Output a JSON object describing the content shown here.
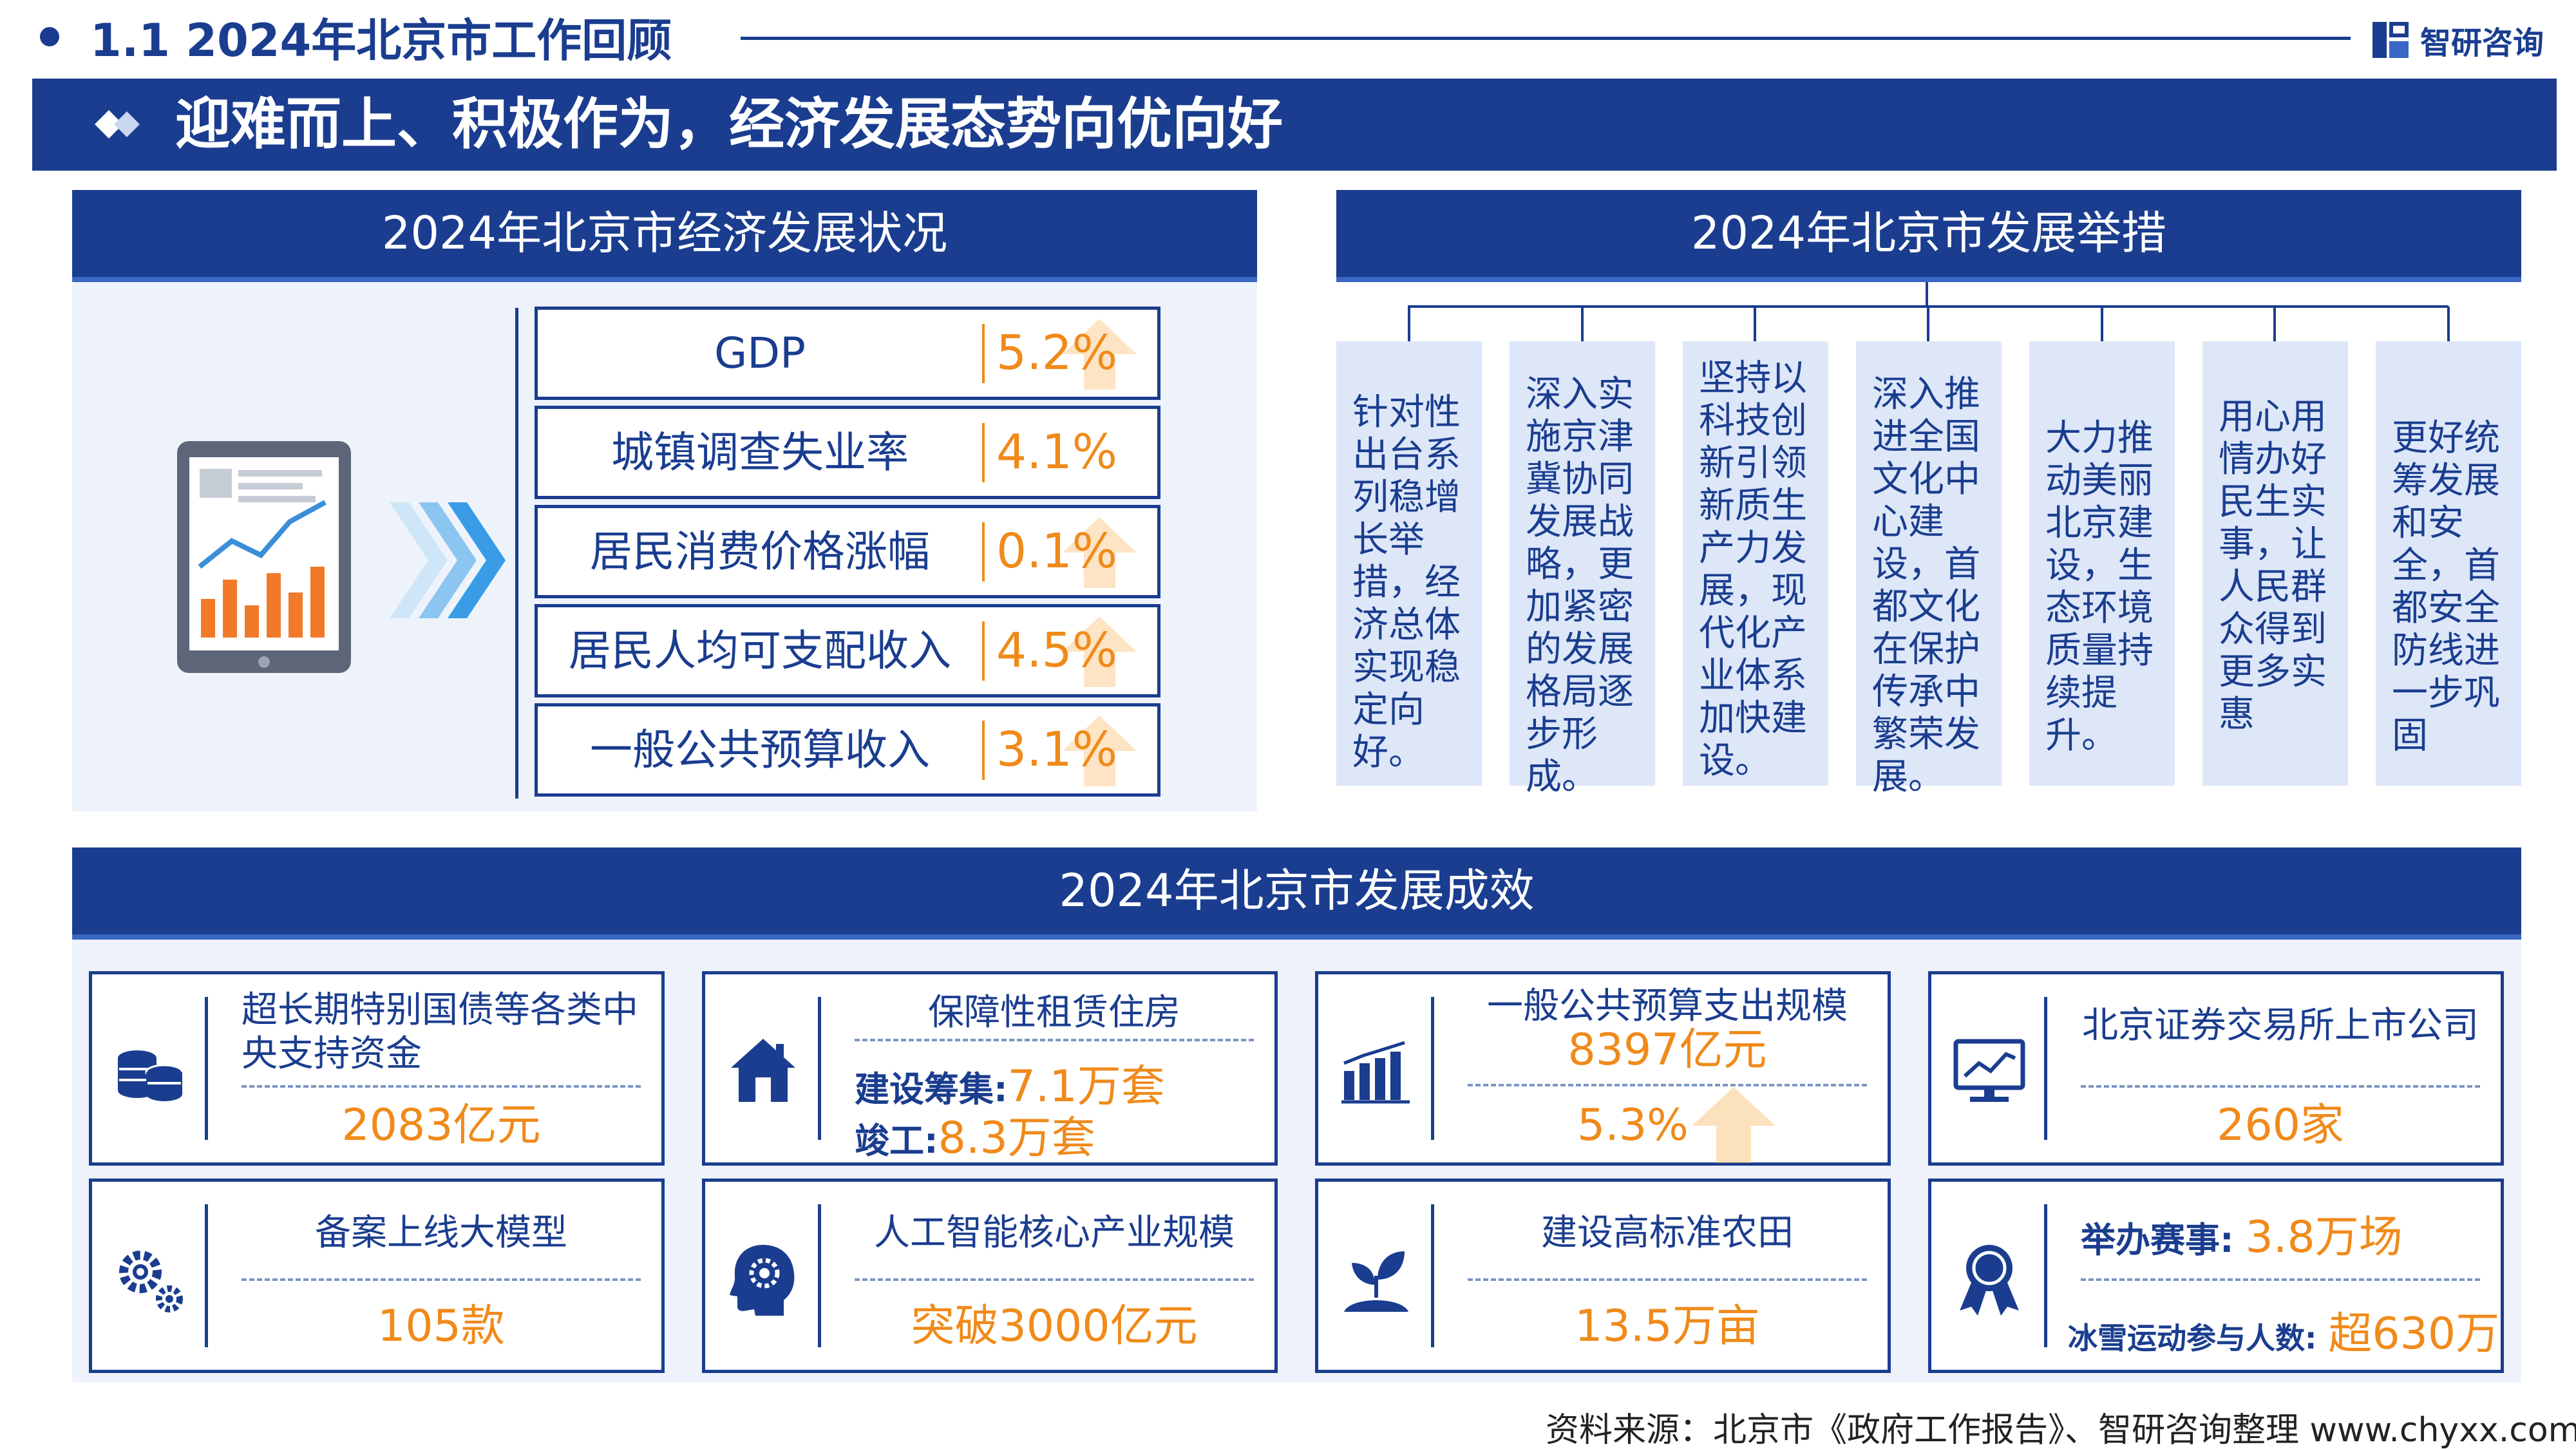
{
  "header": {
    "section_title": "1.1  2024年北京市工作回顾",
    "brand": "智研咨询",
    "banner": "迎难而上、积极作为，经济发展态势向优向好"
  },
  "status_panel": {
    "title": "2024年北京市经济发展状况",
    "rows": [
      {
        "label": "GDP",
        "value": "5.2%"
      },
      {
        "label": "城镇调查失业率",
        "value": "4.1%"
      },
      {
        "label": "居民消费价格涨幅",
        "value": "0.1%"
      },
      {
        "label": "居民人均可支配收入",
        "value": "4.5%"
      },
      {
        "label": "一般公共预算收入",
        "value": "3.1%"
      }
    ]
  },
  "measures_panel": {
    "title": "2024年北京市发展举措",
    "items": [
      "针对性出台系列稳增长举措，经济总体实现稳定向好。",
      "深入实施京津冀协同发展战略，更加紧密的发展格局逐步形成。",
      "坚持以科技创新引领新质生产力发展，现代化产业体系加快建设。",
      "深入推进全国文化中心建设，首都文化在保护传承中繁荣发展。",
      "大力推动美丽北京建设，生态环境质量持续提升。",
      "用心用情办好民生实事，让人民群众得到更多实惠",
      "更好统筹发展和安全，首都安全防线进一步巩固"
    ]
  },
  "results_panel": {
    "title": "2024年北京市发展成效",
    "cards": [
      {
        "icon": "coins-icon",
        "title": "超长期特别国债等各类中央支持资金",
        "value": "2083亿元"
      },
      {
        "icon": "house-icon",
        "title": "保障性租赁住房",
        "line1_label": "建设筹集:",
        "line1_value": "7.1万套",
        "line2_label": "竣工:",
        "line2_value": "8.3万套"
      },
      {
        "icon": "bar-chart-icon",
        "title": "一般公共预算支出规模",
        "value": "8397亿元",
        "value2": "5.3%"
      },
      {
        "icon": "monitor-chart-icon",
        "title": "北京证券交易所上市公司",
        "value": "260家"
      },
      {
        "icon": "gears-icon",
        "title": "备案上线大模型",
        "value": "105款"
      },
      {
        "icon": "ai-head-icon",
        "title": "人工智能核心产业规模",
        "value": "突破3000亿元"
      },
      {
        "icon": "sprout-icon",
        "title": "建设高标准农田",
        "value": "13.5万亩"
      },
      {
        "icon": "medal-icon",
        "line1_label": "举办赛事:",
        "line1_value": "3.8万场",
        "line2_label": "冰雪运动参与人数:",
        "line2_value": "超630万"
      }
    ]
  },
  "source": "资料来源：北京市《政府工作报告》、智研咨询整理  www.chyxx.com",
  "colors": {
    "primary": "#1a3d8f",
    "accent": "#f08a1a",
    "panel_bg": "#eef3fb",
    "card_bg": "#dde7f8"
  }
}
